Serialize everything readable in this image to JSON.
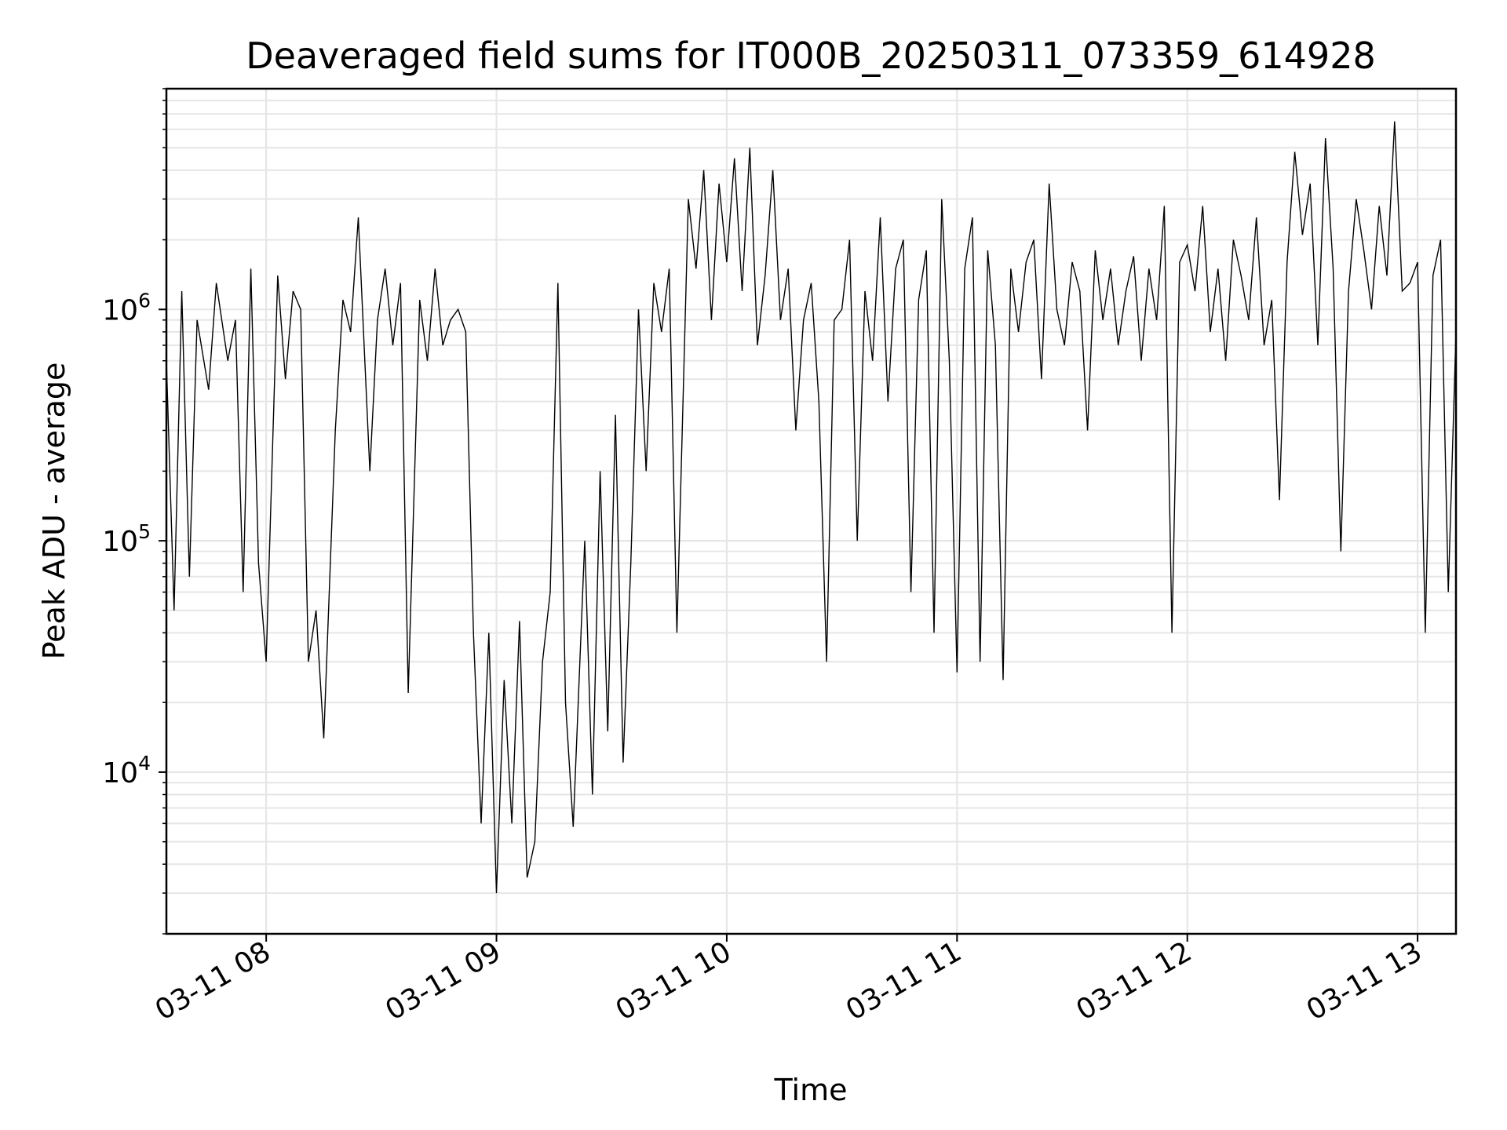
{
  "chart_data": {
    "type": "line",
    "title": "Deaveraged field sums for IT000B_20250311_073359_614928",
    "xlabel": "Time",
    "ylabel": "Peak ADU - average",
    "y_scale": "log",
    "ylim": [
      2000,
      9000000
    ],
    "x_range": [
      "2025-03-11 07:34",
      "2025-03-11 13:10"
    ],
    "x_ticks": [
      {
        "label": "03-11 08",
        "time": "2025-03-11 08:00"
      },
      {
        "label": "03-11 09",
        "time": "2025-03-11 09:00"
      },
      {
        "label": "03-11 10",
        "time": "2025-03-11 10:00"
      },
      {
        "label": "03-11 11",
        "time": "2025-03-11 11:00"
      },
      {
        "label": "03-11 12",
        "time": "2025-03-11 12:00"
      },
      {
        "label": "03-11 13",
        "time": "2025-03-11 13:00"
      }
    ],
    "y_ticks": [
      {
        "base": "10",
        "exp": "4",
        "value": 10000
      },
      {
        "base": "10",
        "exp": "5",
        "value": 100000
      },
      {
        "base": "10",
        "exp": "6",
        "value": 1000000
      }
    ],
    "grid": true,
    "line_color": "#000000",
    "grid_color": "#e6e6e6",
    "series": [
      {
        "x": [
          "2025-03-11 07:34",
          "2025-03-11 07:36",
          "2025-03-11 07:38",
          "2025-03-11 07:40",
          "2025-03-11 07:42",
          "2025-03-11 07:45",
          "2025-03-11 07:47",
          "2025-03-11 07:50",
          "2025-03-11 07:52",
          "2025-03-11 07:54",
          "2025-03-11 07:56",
          "2025-03-11 07:58",
          "2025-03-11 08:00",
          "2025-03-11 08:03",
          "2025-03-11 08:05",
          "2025-03-11 08:07",
          "2025-03-11 08:09",
          "2025-03-11 08:11",
          "2025-03-11 08:13",
          "2025-03-11 08:15",
          "2025-03-11 08:18",
          "2025-03-11 08:20",
          "2025-03-11 08:22",
          "2025-03-11 08:24",
          "2025-03-11 08:27",
          "2025-03-11 08:29",
          "2025-03-11 08:31",
          "2025-03-11 08:33",
          "2025-03-11 08:35",
          "2025-03-11 08:37",
          "2025-03-11 08:40",
          "2025-03-11 08:42",
          "2025-03-11 08:44",
          "2025-03-11 08:46",
          "2025-03-11 08:48",
          "2025-03-11 08:50",
          "2025-03-11 08:52",
          "2025-03-11 08:54",
          "2025-03-11 08:56",
          "2025-03-11 08:58",
          "2025-03-11 09:00",
          "2025-03-11 09:02",
          "2025-03-11 09:04",
          "2025-03-11 09:06",
          "2025-03-11 09:08",
          "2025-03-11 09:10",
          "2025-03-11 09:12",
          "2025-03-11 09:14",
          "2025-03-11 09:16",
          "2025-03-11 09:18",
          "2025-03-11 09:20",
          "2025-03-11 09:23",
          "2025-03-11 09:25",
          "2025-03-11 09:27",
          "2025-03-11 09:29",
          "2025-03-11 09:31",
          "2025-03-11 09:33",
          "2025-03-11 09:35",
          "2025-03-11 09:37",
          "2025-03-11 09:39",
          "2025-03-11 09:41",
          "2025-03-11 09:43",
          "2025-03-11 09:45",
          "2025-03-11 09:47",
          "2025-03-11 09:50",
          "2025-03-11 09:52",
          "2025-03-11 09:54",
          "2025-03-11 09:56",
          "2025-03-11 09:58",
          "2025-03-11 10:00",
          "2025-03-11 10:02",
          "2025-03-11 10:04",
          "2025-03-11 10:06",
          "2025-03-11 10:08",
          "2025-03-11 10:10",
          "2025-03-11 10:12",
          "2025-03-11 10:14",
          "2025-03-11 10:16",
          "2025-03-11 10:18",
          "2025-03-11 10:20",
          "2025-03-11 10:22",
          "2025-03-11 10:24",
          "2025-03-11 10:26",
          "2025-03-11 10:28",
          "2025-03-11 10:30",
          "2025-03-11 10:32",
          "2025-03-11 10:34",
          "2025-03-11 10:36",
          "2025-03-11 10:38",
          "2025-03-11 10:40",
          "2025-03-11 10:42",
          "2025-03-11 10:44",
          "2025-03-11 10:46",
          "2025-03-11 10:48",
          "2025-03-11 10:50",
          "2025-03-11 10:52",
          "2025-03-11 10:54",
          "2025-03-11 10:56",
          "2025-03-11 10:58",
          "2025-03-11 11:00",
          "2025-03-11 11:02",
          "2025-03-11 11:04",
          "2025-03-11 11:06",
          "2025-03-11 11:08",
          "2025-03-11 11:10",
          "2025-03-11 11:12",
          "2025-03-11 11:14",
          "2025-03-11 11:16",
          "2025-03-11 11:18",
          "2025-03-11 11:20",
          "2025-03-11 11:22",
          "2025-03-11 11:24",
          "2025-03-11 11:26",
          "2025-03-11 11:28",
          "2025-03-11 11:30",
          "2025-03-11 11:32",
          "2025-03-11 11:34",
          "2025-03-11 11:36",
          "2025-03-11 11:38",
          "2025-03-11 11:40",
          "2025-03-11 11:42",
          "2025-03-11 11:44",
          "2025-03-11 11:46",
          "2025-03-11 11:48",
          "2025-03-11 11:50",
          "2025-03-11 11:52",
          "2025-03-11 11:54",
          "2025-03-11 11:56",
          "2025-03-11 11:58",
          "2025-03-11 12:00",
          "2025-03-11 12:02",
          "2025-03-11 12:04",
          "2025-03-11 12:06",
          "2025-03-11 12:08",
          "2025-03-11 12:10",
          "2025-03-11 12:12",
          "2025-03-11 12:14",
          "2025-03-11 12:16",
          "2025-03-11 12:18",
          "2025-03-11 12:20",
          "2025-03-11 12:22",
          "2025-03-11 12:24",
          "2025-03-11 12:26",
          "2025-03-11 12:28",
          "2025-03-11 12:30",
          "2025-03-11 12:32",
          "2025-03-11 12:34",
          "2025-03-11 12:36",
          "2025-03-11 12:38",
          "2025-03-11 12:40",
          "2025-03-11 12:42",
          "2025-03-11 12:44",
          "2025-03-11 12:46",
          "2025-03-11 12:48",
          "2025-03-11 12:50",
          "2025-03-11 12:52",
          "2025-03-11 12:54",
          "2025-03-11 12:56",
          "2025-03-11 12:58",
          "2025-03-11 13:00",
          "2025-03-11 13:02",
          "2025-03-11 13:04",
          "2025-03-11 13:06",
          "2025-03-11 13:08",
          "2025-03-11 13:10"
        ],
        "y": [
          600000,
          50000,
          1200000,
          70000,
          900000,
          450000,
          1300000,
          600000,
          900000,
          60000,
          1500000,
          80000,
          30000,
          1400000,
          500000,
          1200000,
          1000000,
          30000,
          50000,
          14000,
          300000,
          1100000,
          800000,
          2500000,
          200000,
          900000,
          1500000,
          700000,
          1300000,
          22000,
          1100000,
          600000,
          1500000,
          700000,
          900000,
          1000000,
          800000,
          40000,
          6000,
          40000,
          3000,
          25000,
          6000,
          45000,
          3500,
          5000,
          30000,
          60000,
          1300000,
          20000,
          5800,
          100000,
          8000,
          200000,
          15000,
          350000,
          11000,
          80000,
          1000000,
          200000,
          1300000,
          800000,
          1500000,
          40000,
          3000000,
          1500000,
          4000000,
          900000,
          3500000,
          1600000,
          4500000,
          1200000,
          5000000,
          700000,
          1400000,
          4000000,
          900000,
          1500000,
          300000,
          900000,
          1300000,
          400000,
          30000,
          900000,
          1000000,
          2000000,
          100000,
          1200000,
          600000,
          2500000,
          400000,
          1500000,
          2000000,
          60000,
          1100000,
          1800000,
          40000,
          3000000,
          600000,
          27000,
          1500000,
          2500000,
          30000,
          1800000,
          700000,
          25000,
          1500000,
          800000,
          1600000,
          2000000,
          500000,
          3500000,
          1000000,
          700000,
          1600000,
          1200000,
          300000,
          1800000,
          900000,
          1500000,
          700000,
          1200000,
          1700000,
          600000,
          1500000,
          900000,
          2800000,
          40000,
          1600000,
          1900000,
          1200000,
          2800000,
          800000,
          1500000,
          600000,
          2000000,
          1400000,
          900000,
          2500000,
          700000,
          1100000,
          150000,
          1600000,
          4800000,
          2100000,
          3500000,
          700000,
          5500000,
          1500000,
          90000,
          1200000,
          3000000,
          1800000,
          1000000,
          2800000,
          1400000,
          6500000,
          1200000,
          1300000,
          1600000,
          40000,
          1400000,
          2000000,
          60000,
          800000
        ]
      }
    ]
  }
}
